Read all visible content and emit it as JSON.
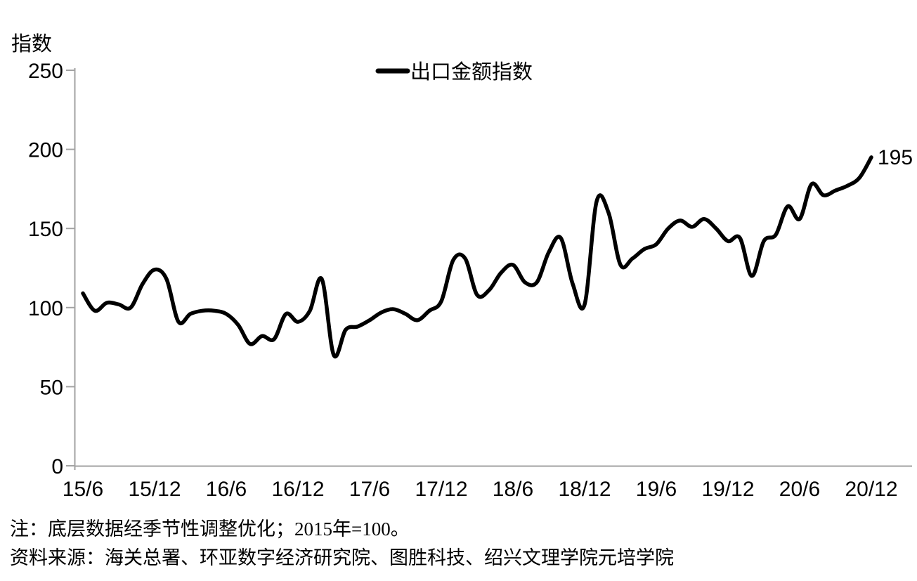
{
  "chart_data": {
    "type": "line",
    "title": "",
    "ylabel": "指数",
    "xlabel": "",
    "legend_label": "出口金额指数",
    "legend_position": "top-center",
    "grid": false,
    "ylim": [
      0,
      250
    ],
    "yticks": [
      0,
      50,
      100,
      150,
      200,
      250
    ],
    "x_frequency": "monthly",
    "x_start_label": "15/6",
    "x_end_label": "20/12",
    "x_tick_labels": [
      "15/6",
      "15/12",
      "16/6",
      "16/12",
      "17/6",
      "17/12",
      "18/6",
      "18/12",
      "19/6",
      "19/12",
      "20/6",
      "20/12"
    ],
    "x_tick_months": [
      0,
      6,
      12,
      18,
      24,
      30,
      36,
      42,
      48,
      54,
      60,
      66
    ],
    "series": [
      {
        "name": "出口金额指数",
        "values": [
          109,
          98,
          103,
          102,
          100,
          115,
          124,
          118,
          91,
          96,
          98,
          98,
          96,
          89,
          77,
          82,
          80,
          96,
          91,
          98,
          118,
          70,
          86,
          88,
          92,
          97,
          99,
          96,
          92,
          98,
          104,
          130,
          131,
          108,
          111,
          122,
          127,
          116,
          116,
          135,
          144,
          115,
          102,
          167,
          160,
          127,
          131,
          137,
          140,
          150,
          155,
          151,
          156,
          150,
          142,
          144,
          120,
          142,
          146,
          164,
          156,
          178,
          171,
          174,
          177,
          182,
          195
        ]
      }
    ],
    "end_label": "195",
    "colors": {
      "line": "#000000",
      "axis": "#a3a3a3",
      "text": "#000000",
      "background": "#ffffff"
    }
  },
  "notes": {
    "note": "注：底层数据经季节性调整优化；2015年=100。",
    "source": "资料来源：海关总署、环亚数字经济研究院、图胜科技、绍兴文理学院元培学院"
  }
}
